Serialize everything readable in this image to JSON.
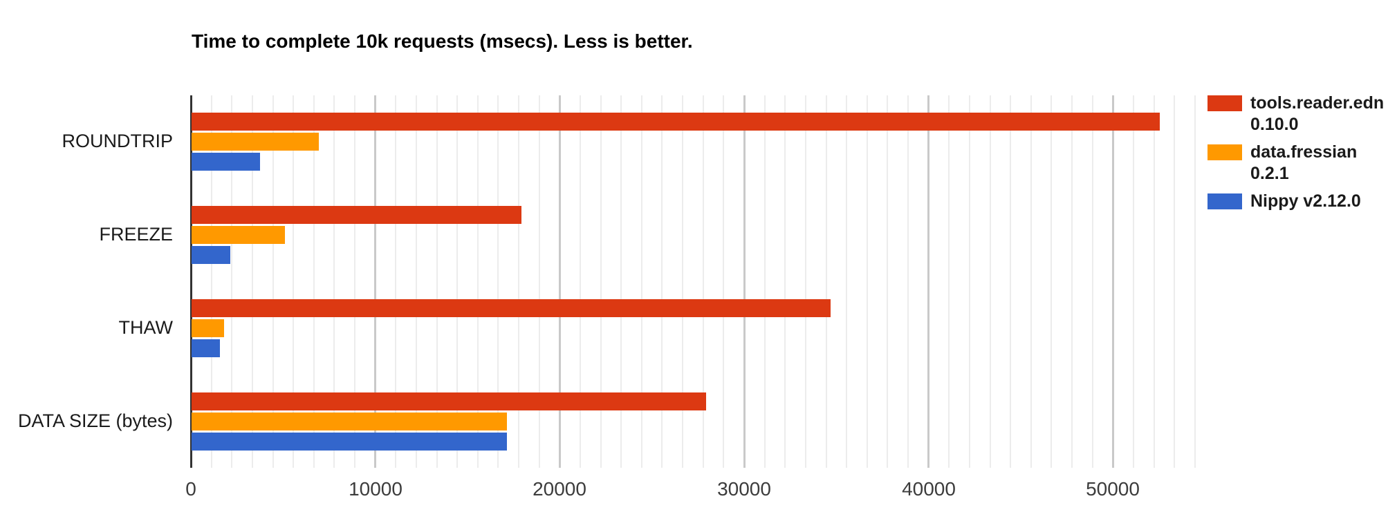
{
  "chart_data": {
    "type": "bar",
    "orientation": "horizontal",
    "title": "Time to complete 10k requests (msecs). Less is better.",
    "xlabel": "",
    "ylabel": "",
    "categories": [
      "ROUNDTRIP",
      "FREEZE",
      "THAW",
      "DATA SIZE (bytes)"
    ],
    "series": [
      {
        "name": "tools.reader.edn 0.10.0",
        "color": "#dc3912",
        "values": [
          52500,
          17900,
          34650,
          27900
        ]
      },
      {
        "name": "data.fressian 0.2.1",
        "color": "#ff9900",
        "values": [
          6900,
          5050,
          1750,
          17100
        ]
      },
      {
        "name": "Nippy v2.12.0",
        "color": "#3366cc",
        "values": [
          3700,
          2100,
          1550,
          17100
        ]
      }
    ],
    "x_ticks": [
      0,
      10000,
      20000,
      30000,
      40000,
      50000
    ],
    "xlim": [
      0,
      54600
    ],
    "grid": true,
    "minor_grid_divisions": 9,
    "legend_position": "right",
    "colors": {
      "axis_line": "#333333",
      "major_gridline": "#c9c9c9",
      "minor_gridline": "#ececec",
      "category_label": "#1a1a1a",
      "tick_label": "#3c3c3c",
      "title": "#000000"
    }
  }
}
